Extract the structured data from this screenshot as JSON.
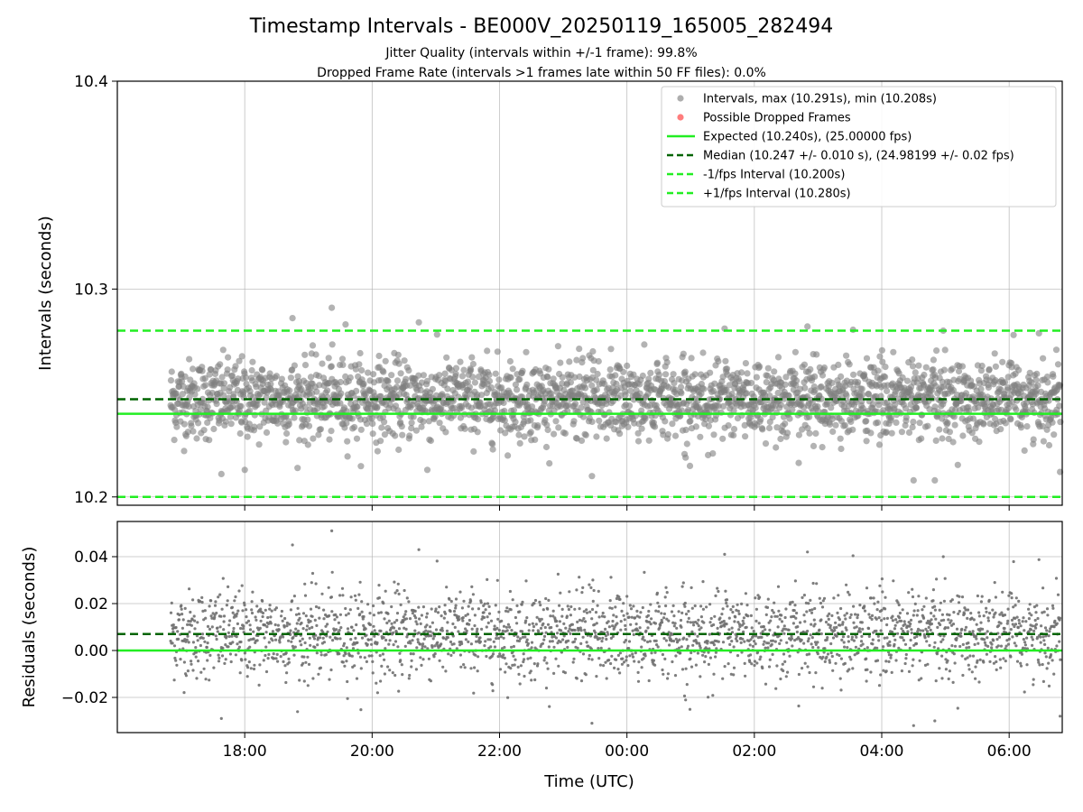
{
  "chart_data": [
    {
      "type": "scatter",
      "title": "Timestamp Intervals - BE000V_20250119_165005_282494",
      "subtitle_1": "Jitter Quality (intervals within +/-1 frame): 99.8%",
      "subtitle_2": "Dropped Frame Rate (intervals >1 frames late within 50 FF files): 0.0%",
      "ylabel": "Intervals (seconds)",
      "ylim": [
        10.196,
        10.4
      ],
      "yticks": [
        "10.2",
        "10.3",
        "10.4"
      ],
      "ytick_values": [
        10.2,
        10.3,
        10.4
      ],
      "grid": true,
      "legend_position": "top-right",
      "legend": [
        {
          "label": "Intervals, max (10.291s), min (10.208s)",
          "marker": "circle",
          "color": "#a0a0a0"
        },
        {
          "label": "Possible Dropped Frames",
          "marker": "circle",
          "color": "#ff6666"
        },
        {
          "label": "Expected (10.240s), (25.00000 fps)",
          "line": "solid",
          "color": "#22ee22"
        },
        {
          "label": "Median (10.247 +/- 0.010 s), (24.98199 +/- 0.02 fps)",
          "line": "dashed",
          "color": "#006400"
        },
        {
          "label": "-1/fps Interval (10.200s)",
          "line": "dashed",
          "color": "#22ee22"
        },
        {
          "label": "+1/fps Interval (10.280s)",
          "line": "dashed",
          "color": "#22ee22"
        }
      ],
      "reference_lines": [
        {
          "y": 10.24,
          "style": "solid",
          "color": "#22ee22"
        },
        {
          "y": 10.247,
          "style": "dashed",
          "color": "#006400"
        },
        {
          "y": 10.2,
          "style": "dashed",
          "color": "#22ee22"
        },
        {
          "y": 10.28,
          "style": "dashed",
          "color": "#22ee22"
        }
      ],
      "series": [
        {
          "color": "#808080",
          "x_start": "2025-01-19T16:50:05",
          "x_end": "2025-01-20T06:50:00",
          "interval_s": 10.24,
          "median": 10.247,
          "spread": 0.01,
          "max": 10.291,
          "min": 10.208,
          "points": [
            [
              "2025-01-19T17:38:00",
              10.211
            ],
            [
              "2025-01-19T18:00:00",
              10.213
            ],
            [
              "2025-01-19T18:45:00",
              10.286
            ],
            [
              "2025-01-19T19:22:00",
              10.291
            ],
            [
              "2025-01-19T19:35:00",
              10.283
            ],
            [
              "2025-01-19T20:44:00",
              10.284
            ],
            [
              "2025-01-19T20:52:00",
              10.213
            ],
            [
              "2025-01-19T23:27:00",
              10.21
            ],
            [
              "2025-01-20T01:32:00",
              10.281
            ],
            [
              "2025-01-20T02:50:00",
              10.282
            ],
            [
              "2025-01-20T04:30:00",
              10.208
            ],
            [
              "2025-01-20T04:50:00",
              10.208
            ],
            [
              "2025-01-20T04:58:00",
              10.28
            ],
            [
              "2025-01-20T06:48:00",
              10.212
            ]
          ]
        }
      ]
    },
    {
      "type": "scatter",
      "xlabel": "Time (UTC)",
      "ylabel": "Residuals (seconds)",
      "ylim": [
        -0.035,
        0.055
      ],
      "yticks": [
        "−0.02",
        "0.00",
        "0.02",
        "0.04"
      ],
      "ytick_values": [
        -0.02,
        0.0,
        0.02,
        0.04
      ],
      "xticks": [
        "18:00",
        "20:00",
        "22:00",
        "00:00",
        "02:00",
        "04:00",
        "06:00"
      ],
      "xtick_values": [
        "2025-01-19T18:00",
        "2025-01-19T20:00",
        "2025-01-19T22:00",
        "2025-01-20T00:00",
        "2025-01-20T02:00",
        "2025-01-20T04:00",
        "2025-01-20T06:00"
      ],
      "xlim": [
        "2025-01-19T16:00:00",
        "2025-01-20T06:50:00"
      ],
      "grid": true,
      "reference_lines": [
        {
          "y": 0.0,
          "style": "solid",
          "color": "#22ee22"
        },
        {
          "y": 0.007,
          "style": "dashed",
          "color": "#006400"
        }
      ],
      "series": [
        {
          "color": "#707070",
          "median": 0.007,
          "spread": 0.01,
          "points": [
            [
              "2025-01-19T19:22:00",
              0.051
            ],
            [
              "2025-01-19T18:45:00",
              0.045
            ],
            [
              "2025-01-19T20:44:00",
              0.043
            ],
            [
              "2025-01-20T01:32:00",
              0.041
            ],
            [
              "2025-01-20T02:50:00",
              0.042
            ],
            [
              "2025-01-20T04:58:00",
              0.04
            ],
            [
              "2025-01-19T17:38:00",
              -0.029
            ],
            [
              "2025-01-19T23:27:00",
              -0.031
            ],
            [
              "2025-01-20T04:30:00",
              -0.032
            ],
            [
              "2025-01-20T04:50:00",
              -0.03
            ],
            [
              "2025-01-20T06:48:00",
              -0.028
            ]
          ]
        }
      ]
    }
  ]
}
